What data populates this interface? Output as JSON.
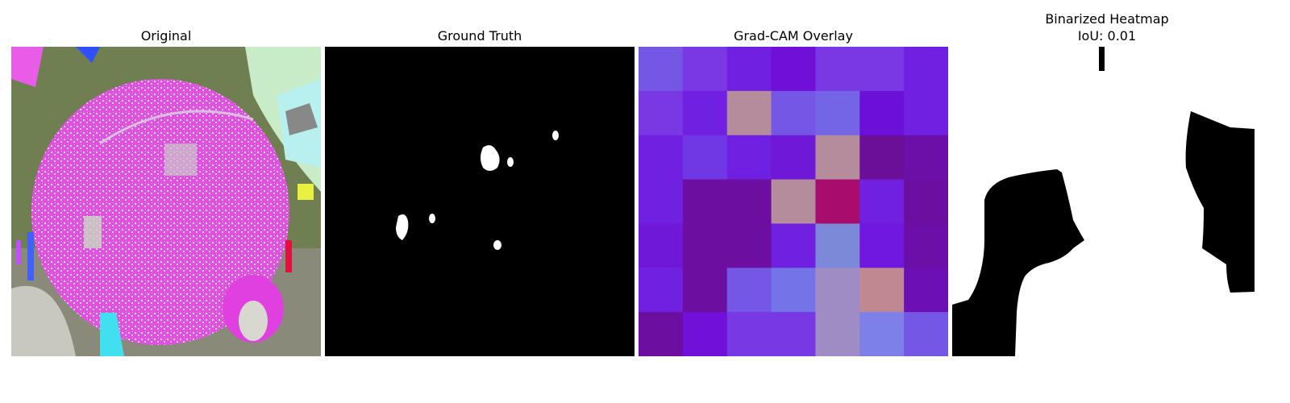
{
  "panels": {
    "original": {
      "title": "Original"
    },
    "ground_truth": {
      "title": "Ground Truth"
    },
    "gradcam": {
      "title": "Grad-CAM Overlay",
      "grid": [
        [
          "#7457e4",
          "#7a38e4",
          "#7020e0",
          "#700fd8",
          "#7a38e4",
          "#7a38e4",
          "#7020e0"
        ],
        [
          "#7a38e4",
          "#7020e0",
          "#b48c9c",
          "#7457e4",
          "#7464e6",
          "#6c0fd8",
          "#7020e0"
        ],
        [
          "#7020e0",
          "#7038e4",
          "#7020e0",
          "#7018d8",
          "#b48c9c",
          "#6c0f98",
          "#6c0fa8"
        ],
        [
          "#7020e0",
          "#6c0fa0",
          "#6c0fa0",
          "#b48c9c",
          "#a80c6c",
          "#7020e0",
          "#6c0fa0"
        ],
        [
          "#7018d8",
          "#6c0fa0",
          "#6c0fa0",
          "#7020e0",
          "#7c88d8",
          "#7018e0",
          "#6c0fa8"
        ],
        [
          "#7020e0",
          "#6c0fa0",
          "#7457e4",
          "#7474e8",
          "#a08cc4",
          "#c08890",
          "#6c0fb4"
        ],
        [
          "#6c0fa0",
          "#7010d8",
          "#7838e4",
          "#7838e4",
          "#a08cc4",
          "#7c80e8",
          "#7457e4"
        ]
      ]
    },
    "binarized": {
      "title": "Binarized Heatmap",
      "subtitle": "IoU: 0.01"
    }
  }
}
